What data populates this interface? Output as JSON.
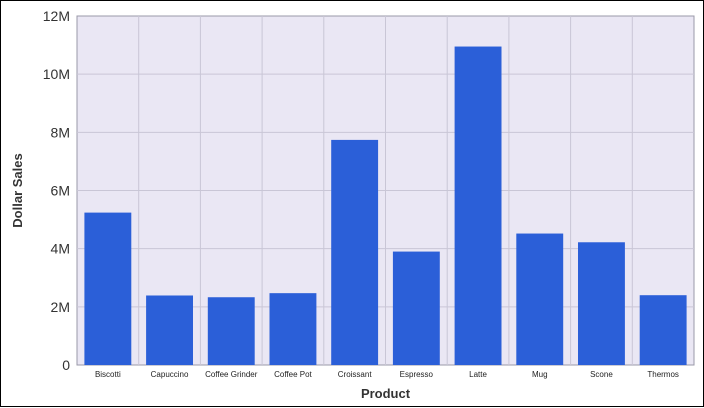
{
  "chart_data": {
    "type": "bar",
    "title": "",
    "xlabel": "Product",
    "ylabel": "Dollar Sales",
    "categories": [
      "Biscotti",
      "Capuccino",
      "Coffee Grinder",
      "Coffee Pot",
      "Croissant",
      "Espresso",
      "Latte",
      "Mug",
      "Scone",
      "Thermos"
    ],
    "values": [
      5240000,
      2390000,
      2330000,
      2470000,
      7740000,
      3900000,
      10950000,
      4520000,
      4220000,
      2400000
    ],
    "ylim": [
      0,
      12000000
    ],
    "yticks": [
      0,
      2000000,
      4000000,
      6000000,
      8000000,
      10000000,
      12000000
    ],
    "ytick_labels": [
      "0",
      "2M",
      "4M",
      "6M",
      "8M",
      "10M",
      "12M"
    ],
    "grid": true,
    "legend": "none",
    "colors": {
      "bar": "#2b5fd8",
      "plot_background": "#eae7f4",
      "grid": "#c9c6d6"
    }
  }
}
